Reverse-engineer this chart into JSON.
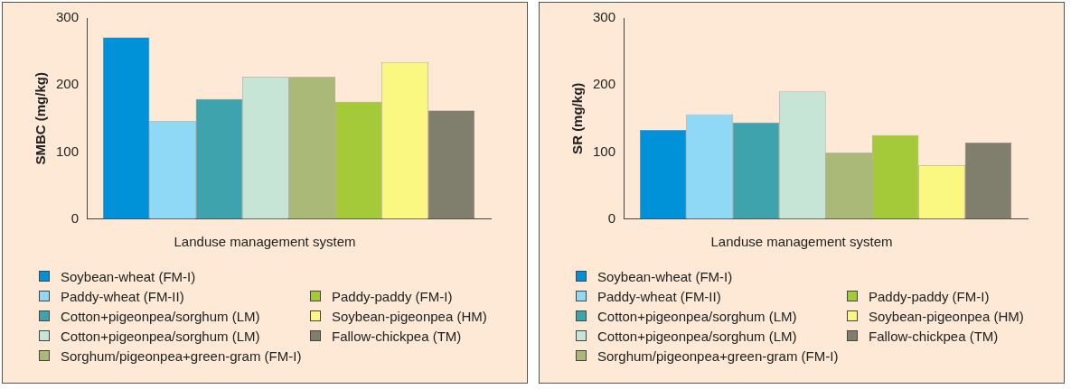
{
  "chart_data": [
    {
      "type": "bar",
      "ylabel": "SMBC (mg/kg)",
      "xlabel": "Landuse management system",
      "categories": [
        null
      ],
      "ylim": [
        0,
        300
      ],
      "yticks": [
        0,
        100,
        200,
        300
      ],
      "grid": false,
      "legend": "bottom",
      "series": [
        {
          "name": "Soybean-wheat (FM-I)",
          "color": "#0092d8",
          "values": [
            271
          ]
        },
        {
          "name": "Paddy-wheat (FM-II)",
          "color": "#8fd8f6",
          "values": [
            146
          ]
        },
        {
          "name": "Cotton+pigeonpea/sorghum (LM)",
          "color": "#3fa3ad",
          "values": [
            179
          ]
        },
        {
          "name": "Cotton+pigeonpea/sorghum (LM)",
          "color": "#c7e5d7",
          "values": [
            212
          ]
        },
        {
          "name": "Sorghum/pigeonpea+green-gram (FM-I)",
          "color": "#aab977",
          "values": [
            212
          ]
        },
        {
          "name": "Paddy-paddy (FM-I)",
          "color": "#a4ca3a",
          "values": [
            175
          ]
        },
        {
          "name": "Soybean-pigeonpea (HM)",
          "color": "#fbf882",
          "values": [
            234
          ]
        },
        {
          "name": "Fallow-chickpea (TM)",
          "color": "#807f6e",
          "values": [
            162
          ]
        }
      ]
    },
    {
      "type": "bar",
      "ylabel": "SR (mg/kg)",
      "xlabel": "Landuse management system",
      "categories": [
        null
      ],
      "ylim": [
        0,
        300
      ],
      "yticks": [
        0,
        100,
        200,
        300
      ],
      "grid": false,
      "legend": "bottom",
      "series": [
        {
          "name": "Soybean-wheat (FM-I)",
          "color": "#0092d8",
          "values": [
            133
          ]
        },
        {
          "name": "Paddy-wheat (FM-II)",
          "color": "#8fd8f6",
          "values": [
            156
          ]
        },
        {
          "name": "Cotton+pigeonpea/sorghum (LM)",
          "color": "#3fa3ad",
          "values": [
            144
          ]
        },
        {
          "name": "Cotton+pigeonpea/sorghum (LM)",
          "color": "#c7e5d7",
          "values": [
            190
          ]
        },
        {
          "name": "Sorghum/pigeonpea+green-gram (FM-I)",
          "color": "#aab977",
          "values": [
            99
          ]
        },
        {
          "name": "Paddy-paddy (FM-I)",
          "color": "#a4ca3a",
          "values": [
            125
          ]
        },
        {
          "name": "Soybean-pigeonpea (HM)",
          "color": "#fbf882",
          "values": [
            80
          ]
        },
        {
          "name": "Fallow-chickpea (TM)",
          "color": "#807f6e",
          "values": [
            114
          ]
        }
      ]
    }
  ]
}
